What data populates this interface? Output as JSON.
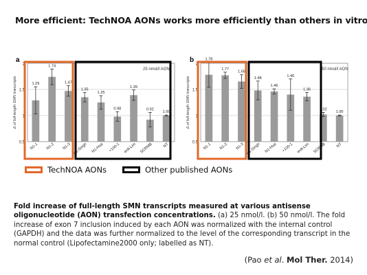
{
  "headline": "More efficient: TechNOA AONs works more efficiently than others in vitro",
  "chart_data": [
    {
      "panel_label": "a",
      "type": "bar",
      "ylabel": "Δ of full-length SMN transcripts",
      "ylim": [
        0.5,
        2
      ],
      "yticks": [
        "0.5",
        "1",
        "1.5",
        "2"
      ],
      "grid": true,
      "annotation": "25 nmol/l AON",
      "categories": [
        "N1-1",
        "N1-2",
        "N1-3",
        "N1-Singh",
        "N1-Hua",
        "+100-1",
        "ex8-Lim",
        "SCRMB",
        "NT"
      ],
      "values": [
        1.29,
        1.74,
        1.47,
        1.35,
        1.25,
        0.98,
        1.39,
        0.92,
        1.0
      ],
      "value_labels": [
        "1.29",
        "1.74",
        "1.47",
        "1.35",
        "1.25",
        "0.98",
        "1.39",
        "0.92",
        "1.00"
      ],
      "errors": [
        0.26,
        0.15,
        0.1,
        0.09,
        0.13,
        0.09,
        0.1,
        0.14,
        0.01
      ]
    },
    {
      "panel_label": "b",
      "type": "bar",
      "ylabel": "Δ of full-length SMN transcripts",
      "ylim": [
        0.5,
        2
      ],
      "yticks": [
        "0.5",
        "1",
        "1.5",
        "2"
      ],
      "grid": true,
      "annotation": "50 nmol/l AON",
      "categories": [
        "N1-1",
        "N1-2",
        "N1-3",
        "N1-Singh",
        "N1-Hua",
        "+100-1",
        "ex8-Lim",
        "SCRMB",
        "NT"
      ],
      "values": [
        1.78,
        1.77,
        1.65,
        1.48,
        1.46,
        1.4,
        1.36,
        1.02,
        1.0
      ],
      "value_labels": [
        "1.78",
        "1.77",
        "1.65",
        "1.48",
        "1.46",
        "1.40",
        "1.36",
        "1.02",
        "1.00"
      ],
      "errors": [
        0.24,
        0.06,
        0.13,
        0.18,
        0.05,
        0.3,
        0.08,
        0.04,
        0.01
      ]
    }
  ],
  "groups": [
    {
      "name": "TechNOA AONs",
      "color": "#e2682b",
      "members": [
        "N1-1",
        "N1-2",
        "N1-3"
      ]
    },
    {
      "name": "Other published AONs",
      "color": "#000000",
      "members": [
        "N1-Singh",
        "N1-Hua",
        "+100-1",
        "ex8-Lim"
      ]
    }
  ],
  "legend": {
    "technoa": "TechNOA AONs",
    "other": "Other published AONs"
  },
  "caption": {
    "bold": "Fold increase of full-length SMN transcripts measured at various antisense oligonucleotide (AON) transfection concentrations.",
    "rest": " (a) 25 nmol/l. (b) 50 nmol/l. The fold increase of exon 7 inclusion induced by each AON was normalized with the internal control (GAPDH) and the data was further normalized to the level of the corresponding transcript in the normal control (Lipofectamine2000 only; labelled as NT)."
  },
  "citation": {
    "open": "(Pao ",
    "etal": "et al",
    "mid": ". ",
    "journal": "Mol Ther.",
    "close": " 2014)"
  },
  "colors": {
    "bar": "#9b9b9b",
    "error": "#333333",
    "grid": "#d0d0d0",
    "technoa": "#e2682b",
    "other": "#000000"
  }
}
